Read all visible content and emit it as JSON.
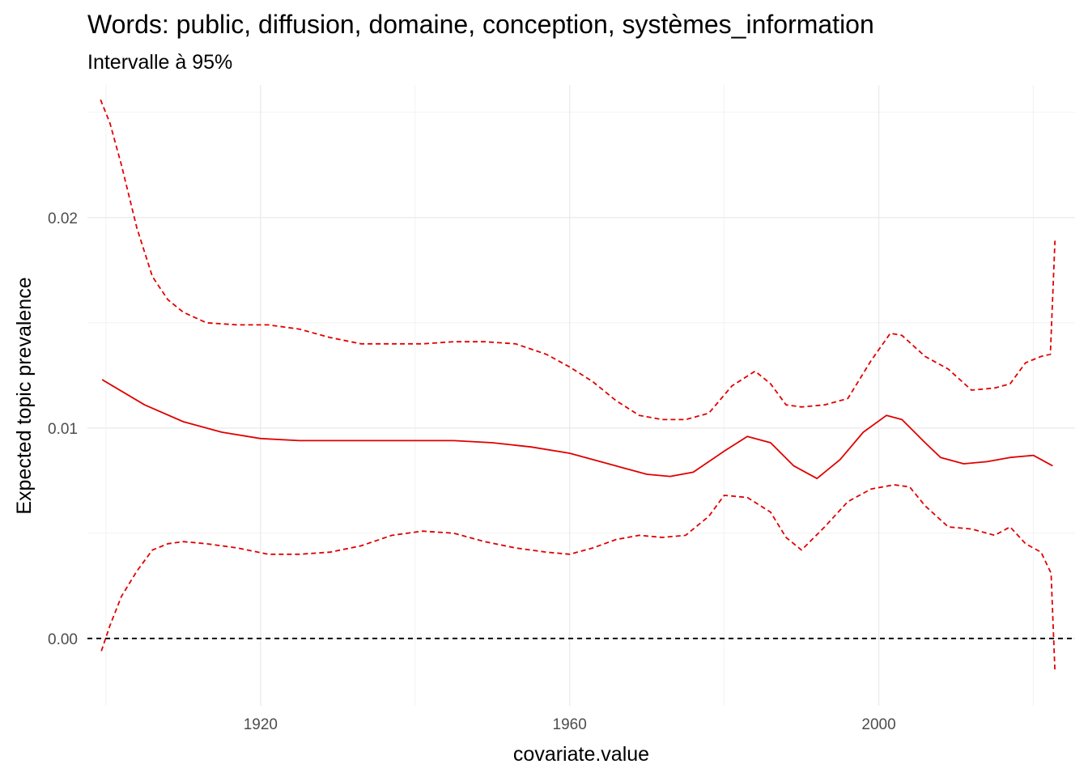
{
  "chart_data": {
    "type": "line",
    "title": "Words: public, diffusion, domaine, conception, systèmes_information",
    "subtitle": "Intervalle à 95%",
    "xlabel": "covariate.value",
    "ylabel": "Expected topic prevalence",
    "xlim": [
      1897.6,
      2025.4
    ],
    "ylim": [
      -0.0032,
      0.0263
    ],
    "x_ticks": [
      1920,
      1960,
      2000
    ],
    "x_tick_labels": [
      "1920",
      "1960",
      "2000"
    ],
    "x_minor_ticks": [
      1900,
      1940,
      1980,
      2020
    ],
    "y_ticks": [
      0.0,
      0.01,
      0.02
    ],
    "y_tick_labels": [
      "0.00",
      "0.01",
      "0.02"
    ],
    "y_minor_ticks": [
      0.005,
      0.015,
      0.025
    ],
    "grid": true,
    "reference_line": {
      "y": 0.0,
      "style": "dashed",
      "color": "#000000"
    },
    "series": [
      {
        "style": "solid",
        "color": "#e00000",
        "x": [
          1899.5,
          1905,
          1910,
          1915,
          1920,
          1925,
          1930,
          1935,
          1940,
          1945,
          1950,
          1955,
          1960,
          1965,
          1970,
          1973,
          1976,
          1980,
          1983,
          1986,
          1989,
          1992,
          1995,
          1998,
          2001,
          2003,
          2006,
          2008,
          2011,
          2014,
          2017,
          2020,
          2022.5
        ],
        "values": [
          0.0123,
          0.0111,
          0.0103,
          0.0098,
          0.0095,
          0.0094,
          0.0094,
          0.0094,
          0.0094,
          0.0094,
          0.0093,
          0.0091,
          0.0088,
          0.0083,
          0.0078,
          0.0077,
          0.0079,
          0.0089,
          0.0096,
          0.0093,
          0.0082,
          0.0076,
          0.0085,
          0.0098,
          0.0106,
          0.0104,
          0.0093,
          0.0086,
          0.0083,
          0.0084,
          0.0086,
          0.0087,
          0.0082
        ]
      },
      {
        "style": "dashed",
        "color": "#e00000",
        "x": [
          1899.3,
          1900.5,
          1902,
          1904,
          1906,
          1908,
          1910,
          1913,
          1917,
          1921,
          1925,
          1929,
          1933,
          1937,
          1941,
          1945,
          1949,
          1953,
          1957,
          1960,
          1963,
          1966,
          1969,
          1972,
          1975,
          1978,
          1981,
          1984,
          1986,
          1988,
          1990,
          1993,
          1996,
          1999,
          2001.5,
          2003,
          2006,
          2009,
          2012,
          2015,
          2017,
          2019,
          2021,
          2022.2,
          2022.8
        ],
        "values": [
          0.0256,
          0.0245,
          0.0225,
          0.0195,
          0.0172,
          0.0161,
          0.0155,
          0.015,
          0.0149,
          0.0149,
          0.0147,
          0.0143,
          0.014,
          0.014,
          0.014,
          0.0141,
          0.0141,
          0.014,
          0.0135,
          0.0129,
          0.0122,
          0.0113,
          0.0106,
          0.0104,
          0.0104,
          0.0107,
          0.012,
          0.0127,
          0.0121,
          0.0111,
          0.011,
          0.0111,
          0.0114,
          0.0132,
          0.0145,
          0.0144,
          0.0134,
          0.0128,
          0.0118,
          0.0119,
          0.0121,
          0.0131,
          0.0134,
          0.0135,
          0.0189
        ]
      },
      {
        "style": "dashed",
        "color": "#e00000",
        "x": [
          1899.4,
          1900.5,
          1902,
          1904,
          1906,
          1908,
          1910,
          1913,
          1917,
          1921,
          1925,
          1929,
          1933,
          1937,
          1941,
          1945,
          1949,
          1953,
          1957,
          1960,
          1963,
          1966,
          1969,
          1972,
          1975,
          1978,
          1980,
          1983,
          1986,
          1988,
          1990,
          1993,
          1996,
          1999,
          2002,
          2004,
          2006,
          2009,
          2012,
          2015,
          2017,
          2019,
          2021,
          2022.3,
          2022.8
        ],
        "values": [
          -0.0006,
          0.0006,
          0.002,
          0.0032,
          0.0042,
          0.0045,
          0.0046,
          0.0045,
          0.0043,
          0.004,
          0.004,
          0.0041,
          0.0044,
          0.0049,
          0.0051,
          0.005,
          0.0046,
          0.0043,
          0.0041,
          0.004,
          0.0043,
          0.0047,
          0.0049,
          0.0048,
          0.0049,
          0.0058,
          0.0068,
          0.0067,
          0.006,
          0.0048,
          0.0042,
          0.0053,
          0.0065,
          0.0071,
          0.0073,
          0.0072,
          0.0063,
          0.0053,
          0.0052,
          0.0049,
          0.0053,
          0.0045,
          0.0041,
          0.0031,
          -0.0016
        ]
      }
    ]
  }
}
